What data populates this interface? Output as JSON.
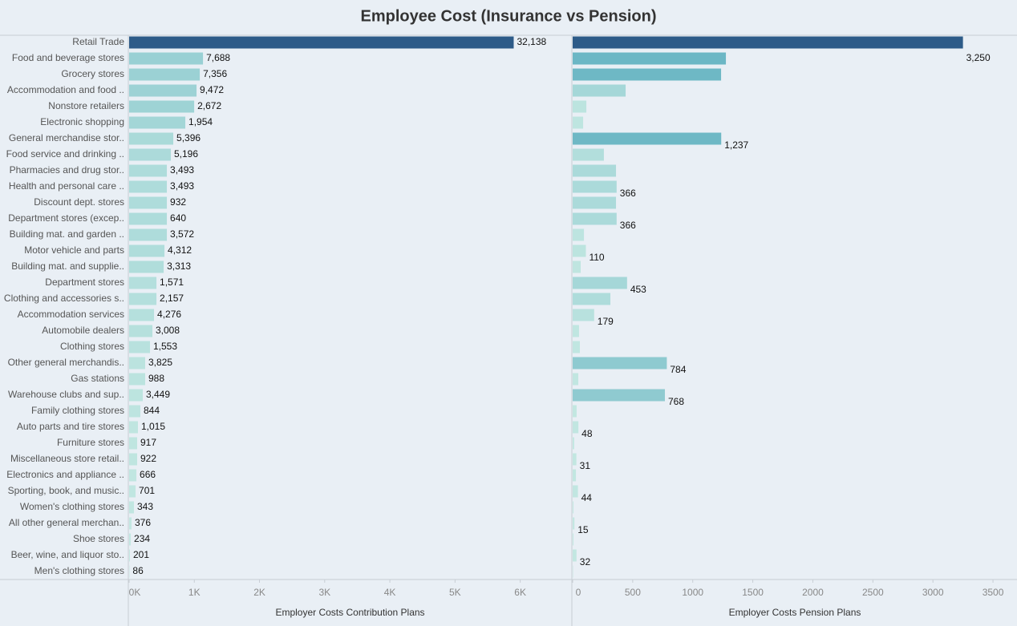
{
  "title": "Employee Cost (Insurance vs Pension)",
  "chart_data": [
    {
      "type": "bar",
      "orientation": "horizontal",
      "x_label": "Employer Costs Contribution Plans",
      "categories": [
        "Retail Trade",
        "Food and beverage stores",
        "Grocery stores",
        "Accommodation and food ..",
        "Nonstore retailers",
        "Electronic shopping",
        "General merchandise stor..",
        "Food service and drinking ..",
        "Pharmacies and drug stor..",
        "Health and personal care ..",
        "Discount dept. stores",
        "Department stores (excep..",
        "Building mat. and garden ..",
        "Motor vehicle and parts",
        "Building mat. and supplie..",
        "Department stores",
        "Clothing and accessories s..",
        "Accommodation services",
        "Automobile dealers",
        "Clothing stores",
        "Other general merchandis..",
        "Gas stations",
        "Warehouse clubs and sup..",
        "Family clothing stores",
        "Auto parts and tire stores",
        "Furniture stores",
        "Miscellaneous store retail..",
        "Electronics and appliance ..",
        "Sporting, book, and  music..",
        "Women's clothing stores",
        "All other general merchan..",
        "Shoe stores",
        "Beer, wine, and liquor sto..",
        "Men's clothing stores"
      ],
      "values": [
        5900,
        1133,
        1084,
        1034,
        998,
        862,
        677,
        640,
        579,
        579,
        579,
        579,
        579,
        542,
        530,
        419,
        419,
        382,
        357,
        320,
        246,
        246,
        209,
        172,
        135,
        123,
        123,
        111,
        99,
        74,
        37,
        25,
        12,
        5
      ],
      "labels": [
        "32,138",
        "7,688",
        "7,356",
        "9,472",
        "2,672",
        "1,954",
        "5,396",
        "5,196",
        "3,493",
        "3,493",
        "932",
        "640",
        "3,572",
        "4,312",
        "3,313",
        "1,571",
        "2,157",
        "4,276",
        "3,008",
        "1,553",
        "3,825",
        "988",
        "3,449",
        "844",
        "1,015",
        "917",
        "922",
        "666",
        "701",
        "343",
        "376",
        "234",
        "201",
        "86"
      ],
      "xlim": [
        0,
        6780
      ],
      "xticks": [
        {
          "value": 0,
          "label": "0K"
        },
        {
          "value": 1000,
          "label": "1K"
        },
        {
          "value": 2000,
          "label": "2K"
        },
        {
          "value": 3000,
          "label": "3K"
        },
        {
          "value": 4000,
          "label": "4K"
        },
        {
          "value": 5000,
          "label": "5K"
        },
        {
          "value": 6000,
          "label": "6K"
        }
      ],
      "color_scale": [
        "#c4e8e2",
        "#6ab6c4",
        "#2d5b88"
      ]
    },
    {
      "type": "bar",
      "orientation": "horizontal",
      "x_label": "Employer Costs Pension Plans",
      "values": [
        3250,
        1276,
        1236,
        441,
        114,
        87,
        1237,
        260,
        361,
        366,
        361,
        366,
        94,
        110,
        67,
        453,
        314,
        179,
        53,
        60,
        784,
        47,
        768,
        33,
        48,
        13,
        31,
        27,
        44,
        7,
        15,
        7,
        32,
        3
      ],
      "value_labels": [
        "3,250",
        null,
        null,
        null,
        null,
        null,
        "1,237",
        null,
        null,
        "366",
        null,
        "366",
        null,
        "110",
        null,
        "453",
        null,
        "179",
        null,
        null,
        "784",
        null,
        "768",
        null,
        "48",
        null,
        "31",
        null,
        "44",
        null,
        "15",
        null,
        "32",
        null
      ],
      "xlim": [
        0,
        3700
      ],
      "xticks": [
        0,
        500,
        1000,
        1500,
        2000,
        2500,
        3000,
        3500
      ],
      "color_scale": [
        "#c4e8e2",
        "#6ab6c4",
        "#2d5b88"
      ]
    }
  ]
}
